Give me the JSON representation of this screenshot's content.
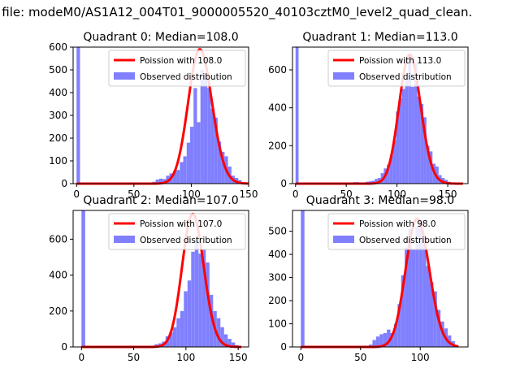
{
  "figure": {
    "suptitle": "n file: modeM0/AS1A12_004T01_9000005520_40103cztM0_level2_quad_clean."
  },
  "colors": {
    "fit_line": "#ff0000",
    "histogram": "#8080ff",
    "axes": "#000000",
    "background": "#ffffff"
  },
  "chart_data": [
    {
      "type": "bar",
      "title": "Quadrant 0: Median=108.0",
      "legend": {
        "placement": "top-right",
        "entries": [
          "Poission with 108.0",
          "Observed distribution"
        ]
      },
      "xlim": [
        -3,
        150
      ],
      "ylim": [
        0,
        600
      ],
      "xticks": [
        0,
        50,
        100,
        150
      ],
      "xtick_labels": [
        "0",
        "50",
        "100",
        "150"
      ],
      "yticks": [
        0,
        100,
        200,
        300,
        400,
        500,
        600
      ],
      "ytick_labels": [
        "0",
        "100",
        "200",
        "300",
        "400",
        "500",
        "600"
      ],
      "bin_width": 3,
      "histogram": {
        "name": "Observed distribution",
        "bins": [
          [
            0,
            600
          ],
          [
            3,
            3
          ],
          [
            66,
            8
          ],
          [
            69,
            18
          ],
          [
            72,
            22
          ],
          [
            75,
            20
          ],
          [
            78,
            35
          ],
          [
            81,
            45
          ],
          [
            84,
            55
          ],
          [
            87,
            60
          ],
          [
            90,
            95
          ],
          [
            93,
            120
          ],
          [
            96,
            180
          ],
          [
            99,
            250
          ],
          [
            102,
            420
          ],
          [
            105,
            270
          ],
          [
            108,
            500
          ],
          [
            111,
            480
          ],
          [
            114,
            420
          ],
          [
            117,
            330
          ],
          [
            120,
            290
          ],
          [
            123,
            185
          ],
          [
            126,
            140
          ],
          [
            129,
            120
          ],
          [
            132,
            75
          ],
          [
            135,
            35
          ],
          [
            138,
            25
          ],
          [
            141,
            15
          ],
          [
            144,
            5
          ]
        ]
      },
      "poisson": {
        "name": "Poission with 108.0",
        "mean": 108.0,
        "peak": 590,
        "x_range": [
          0,
          150
        ]
      }
    },
    {
      "type": "bar",
      "title": "Quadrant 1: Median=113.0",
      "legend": {
        "placement": "top-right",
        "entries": [
          "Poission with 113.0",
          "Observed distribution"
        ]
      },
      "xlim": [
        -3,
        170
      ],
      "ylim": [
        0,
        720
      ],
      "xticks": [
        0,
        50,
        100,
        150
      ],
      "xtick_labels": [
        "0",
        "50",
        "100",
        "150"
      ],
      "yticks": [
        0,
        200,
        400,
        600
      ],
      "ytick_labels": [
        "0",
        "200",
        "400",
        "600"
      ],
      "bin_width": 3,
      "histogram": {
        "name": "Observed distribution",
        "bins": [
          [
            0,
            720
          ],
          [
            3,
            3
          ],
          [
            48,
            5
          ],
          [
            51,
            5
          ],
          [
            57,
            8
          ],
          [
            60,
            8
          ],
          [
            69,
            10
          ],
          [
            72,
            12
          ],
          [
            75,
            15
          ],
          [
            78,
            25
          ],
          [
            81,
            30
          ],
          [
            84,
            55
          ],
          [
            87,
            80
          ],
          [
            90,
            100
          ],
          [
            93,
            150
          ],
          [
            96,
            230
          ],
          [
            99,
            380
          ],
          [
            102,
            450
          ],
          [
            105,
            500
          ],
          [
            108,
            550
          ],
          [
            111,
            670
          ],
          [
            114,
            510
          ],
          [
            117,
            640
          ],
          [
            120,
            460
          ],
          [
            123,
            420
          ],
          [
            126,
            350
          ],
          [
            129,
            200
          ],
          [
            132,
            170
          ],
          [
            135,
            105
          ],
          [
            138,
            90
          ],
          [
            141,
            45
          ],
          [
            144,
            30
          ],
          [
            147,
            20
          ],
          [
            150,
            10
          ],
          [
            153,
            5
          ],
          [
            156,
            3
          ]
        ]
      },
      "poisson": {
        "name": "Poission with 113.0",
        "mean": 113.0,
        "peak": 680,
        "x_range": [
          0,
          165
        ]
      }
    },
    {
      "type": "bar",
      "title": "Quadrant 2: Median=107.0",
      "legend": {
        "placement": "top-right",
        "entries": [
          "Poission with 107.0",
          "Observed distribution"
        ]
      },
      "xlim": [
        -8,
        160
      ],
      "ylim": [
        0,
        760
      ],
      "xticks": [
        0,
        50,
        100,
        150
      ],
      "xtick_labels": [
        "0",
        "50",
        "100",
        "150"
      ],
      "yticks": [
        0,
        200,
        400,
        600
      ],
      "ytick_labels": [
        "0",
        "200",
        "400",
        "600"
      ],
      "bin_width": 3.5,
      "histogram": {
        "name": "Observed distribution",
        "bins": [
          [
            0,
            760
          ],
          [
            3.5,
            3
          ],
          [
            59.5,
            5
          ],
          [
            63,
            5
          ],
          [
            70,
            15
          ],
          [
            73.5,
            20
          ],
          [
            77,
            30
          ],
          [
            80.5,
            60
          ],
          [
            84,
            80
          ],
          [
            87.5,
            110
          ],
          [
            91,
            160
          ],
          [
            94.5,
            200
          ],
          [
            98,
            310
          ],
          [
            101.5,
            370
          ],
          [
            105,
            530
          ],
          [
            108.5,
            600
          ],
          [
            112,
            520
          ],
          [
            115.5,
            540
          ],
          [
            119,
            470
          ],
          [
            122.5,
            290
          ],
          [
            126,
            200
          ],
          [
            129.5,
            160
          ],
          [
            133,
            110
          ],
          [
            136.5,
            70
          ],
          [
            140,
            45
          ],
          [
            143.5,
            25
          ],
          [
            147,
            10
          ]
        ]
      },
      "poisson": {
        "name": "Poission with 107.0",
        "mean": 107.0,
        "peak": 740,
        "x_range": [
          0,
          153
        ]
      }
    },
    {
      "type": "bar",
      "title": "Quadrant 3: Median=98.0",
      "legend": {
        "placement": "top-right",
        "entries": [
          "Poission with 98.0",
          "Observed distribution"
        ]
      },
      "xlim": [
        -7,
        140
      ],
      "ylim": [
        0,
        590
      ],
      "xticks": [
        0,
        50,
        100
      ],
      "xtick_labels": [
        "0",
        "50",
        "100"
      ],
      "yticks": [
        0,
        100,
        200,
        300,
        400,
        500
      ],
      "ytick_labels": [
        "0",
        "100",
        "200",
        "300",
        "400",
        "500"
      ],
      "bin_width": 3,
      "histogram": {
        "name": "Observed distribution",
        "bins": [
          [
            0,
            590
          ],
          [
            3,
            3
          ],
          [
            54,
            5
          ],
          [
            57,
            10
          ],
          [
            60,
            30
          ],
          [
            63,
            45
          ],
          [
            66,
            55
          ],
          [
            69,
            60
          ],
          [
            72,
            75
          ],
          [
            75,
            60
          ],
          [
            78,
            100
          ],
          [
            81,
            185
          ],
          [
            84,
            310
          ],
          [
            87,
            430
          ],
          [
            90,
            510
          ],
          [
            93,
            420
          ],
          [
            96,
            520
          ],
          [
            99,
            550
          ],
          [
            102,
            480
          ],
          [
            105,
            350
          ],
          [
            108,
            280
          ],
          [
            111,
            240
          ],
          [
            114,
            160
          ],
          [
            117,
            110
          ],
          [
            120,
            80
          ],
          [
            123,
            50
          ],
          [
            126,
            25
          ],
          [
            129,
            5
          ]
        ]
      },
      "poisson": {
        "name": "Poission with 98.0",
        "mean": 98.0,
        "peak": 555,
        "x_range": [
          0,
          132
        ]
      }
    }
  ]
}
